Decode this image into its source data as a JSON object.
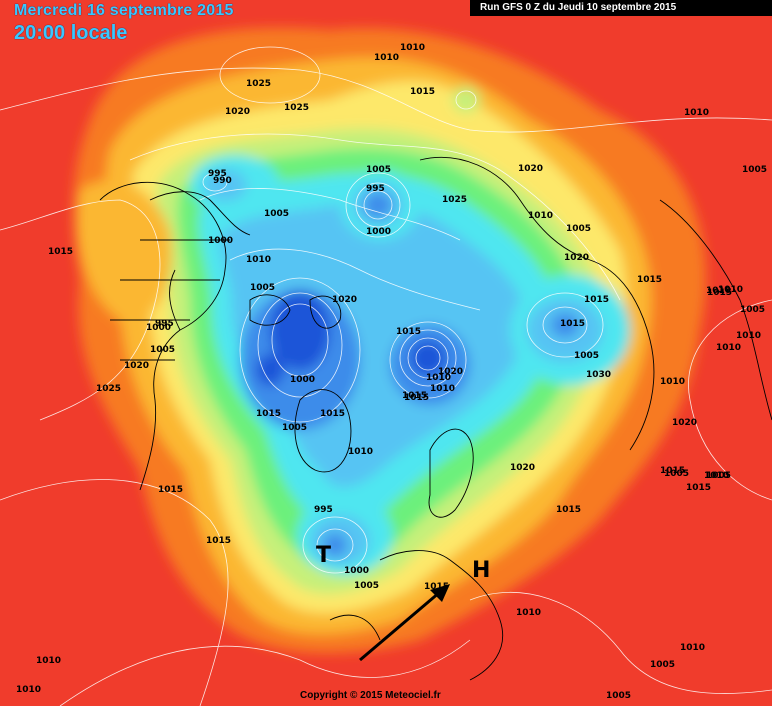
{
  "header": {
    "date": "Mercredi 16 septembre 2015",
    "time": "20:00 locale",
    "run": "Run GFS 0 Z du Jeudi 10 septembre 2015"
  },
  "footer": {
    "copyright": "Copyright © 2015 Meteociel.fr"
  },
  "markers": {
    "low": "T",
    "high": "H"
  },
  "colors": {
    "red": "#f03c2c",
    "orange": "#f77a24",
    "lightorange": "#fbb733",
    "yellow": "#fde86a",
    "lime": "#c6f07a",
    "green": "#6cf07c",
    "cyan": "#4fe6f0",
    "lightblue": "#56c4f3",
    "blue": "#3e8cea",
    "darkblue": "#1f55d8"
  },
  "isobar_labels": [
    {
      "text": "1010"
    },
    {
      "text": "1010"
    },
    {
      "text": "1025"
    },
    {
      "text": "1020"
    },
    {
      "text": "1025"
    },
    {
      "text": "1015"
    },
    {
      "text": "1010"
    },
    {
      "text": "995"
    },
    {
      "text": "990"
    },
    {
      "text": "1005"
    },
    {
      "text": "995"
    },
    {
      "text": "1005"
    },
    {
      "text": "1000"
    },
    {
      "text": "1025"
    },
    {
      "text": "1020"
    },
    {
      "text": "1010"
    },
    {
      "text": "1005"
    },
    {
      "text": "1015"
    },
    {
      "text": "1000"
    },
    {
      "text": "1010"
    },
    {
      "text": "1005"
    },
    {
      "text": "1020"
    },
    {
      "text": "1015"
    },
    {
      "text": "1000"
    },
    {
      "text": "995"
    },
    {
      "text": "1005"
    },
    {
      "text": "1020"
    },
    {
      "text": "1015"
    },
    {
      "text": "1015"
    },
    {
      "text": "1025"
    },
    {
      "text": "1000"
    },
    {
      "text": "1010"
    },
    {
      "text": "1015"
    },
    {
      "text": "1015"
    },
    {
      "text": "1005"
    },
    {
      "text": "1010"
    },
    {
      "text": "1005"
    },
    {
      "text": "1015"
    },
    {
      "text": "1020"
    },
    {
      "text": "1010"
    },
    {
      "text": "1010"
    },
    {
      "text": "1020"
    },
    {
      "text": "1015"
    },
    {
      "text": "1015"
    },
    {
      "text": "1005"
    },
    {
      "text": "995"
    },
    {
      "text": "1000"
    },
    {
      "text": "1005"
    },
    {
      "text": "1015"
    },
    {
      "text": "1010"
    },
    {
      "text": "1005"
    },
    {
      "text": "1010"
    },
    {
      "text": "1010"
    },
    {
      "text": "1010"
    },
    {
      "text": "1005"
    },
    {
      "text": "1010"
    },
    {
      "text": "1005"
    },
    {
      "text": "1015"
    },
    {
      "text": "1020"
    },
    {
      "text": "1030"
    },
    {
      "text": "1015"
    },
    {
      "text": "1020"
    },
    {
      "text": "1015"
    },
    {
      "text": "1015"
    },
    {
      "text": "1010"
    },
    {
      "text": "1010"
    },
    {
      "text": "1005"
    },
    {
      "text": "1010"
    },
    {
      "text": "1010"
    },
    {
      "text": "1015"
    },
    {
      "text": "1005"
    },
    {
      "text": "1015"
    }
  ]
}
